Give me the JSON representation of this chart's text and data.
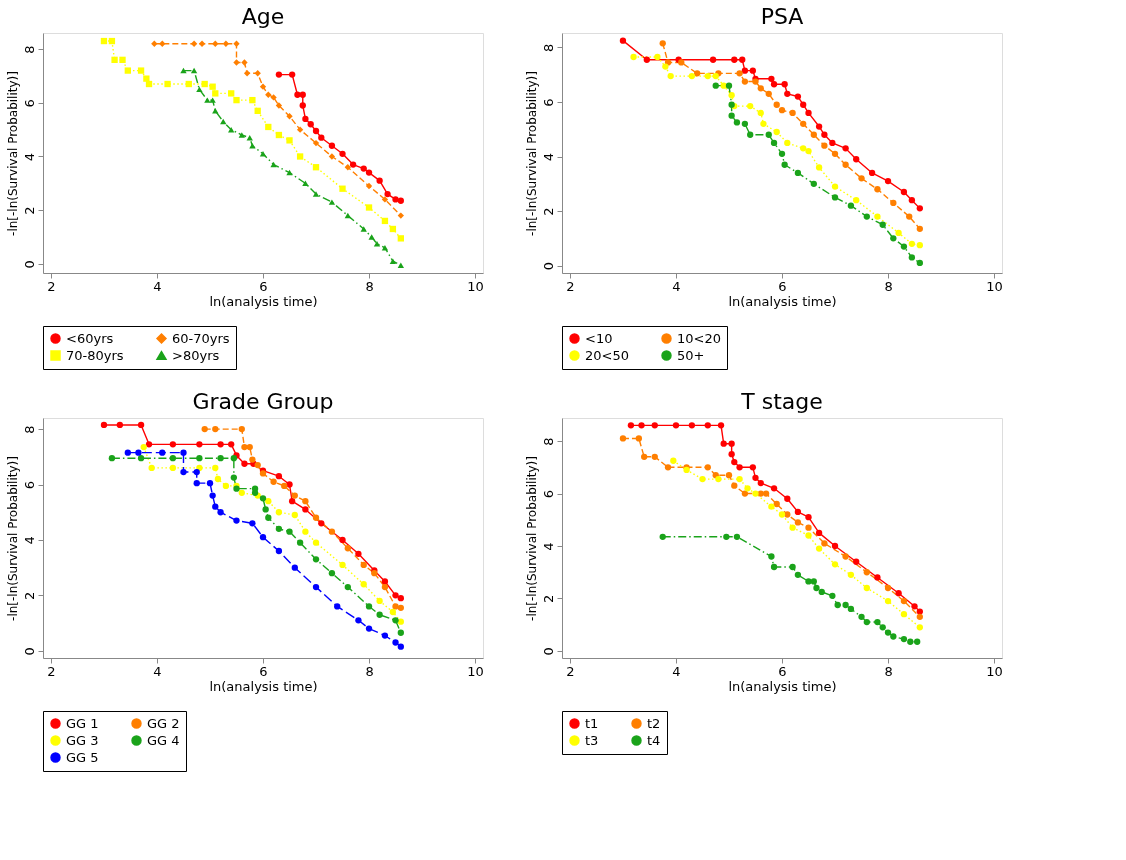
{
  "chart_data": [
    {
      "type": "line",
      "title": "Age",
      "xlabel": "ln(analysis time)",
      "ylabel": "-ln[-ln(Survival Probability)]",
      "xlim": [
        1.85,
        10.15
      ],
      "ylim": [
        -0.34,
        8.6
      ],
      "xticks": [
        2,
        4,
        6,
        8,
        10
      ],
      "yticks": [
        0,
        2,
        4,
        6,
        8
      ],
      "grid": false,
      "legend": "bottom",
      "series": [
        {
          "name": "<60yrs",
          "color": "#ff0000",
          "line_style": "solid",
          "marker": "circle",
          "x": [
            6.3,
            6.55,
            6.65,
            6.75,
            6.75,
            6.8,
            6.9,
            7.0,
            7.1,
            7.3,
            7.5,
            7.7,
            7.9,
            8.0,
            8.2,
            8.35,
            8.5,
            8.6
          ],
          "values": [
            7.05,
            7.05,
            6.3,
            6.3,
            5.9,
            5.4,
            5.2,
            4.95,
            4.7,
            4.4,
            4.1,
            3.7,
            3.55,
            3.4,
            3.1,
            2.6,
            2.4,
            2.35
          ]
        },
        {
          "name": "60-70yrs",
          "color": "#ff7f00",
          "line_style": "dashed",
          "marker": "diamond",
          "x": [
            3.95,
            4.1,
            4.7,
            4.85,
            5.1,
            5.3,
            5.5,
            5.5,
            5.65,
            5.7,
            5.9,
            6.0,
            6.1,
            6.2,
            6.3,
            6.5,
            6.7,
            7.0,
            7.3,
            7.6,
            8.0,
            8.3,
            8.6
          ],
          "values": [
            8.2,
            8.2,
            8.2,
            8.2,
            8.2,
            8.2,
            8.2,
            7.5,
            7.5,
            7.1,
            7.1,
            6.6,
            6.3,
            6.2,
            5.9,
            5.5,
            5.0,
            4.5,
            4.0,
            3.6,
            2.9,
            2.4,
            1.8
          ]
        },
        {
          "name": "70-80yrs",
          "color": "#ffff00",
          "line_style": "dotted",
          "marker": "square",
          "x": [
            3.0,
            3.15,
            3.2,
            3.35,
            3.45,
            3.7,
            3.8,
            3.85,
            4.2,
            4.6,
            4.9,
            5.05,
            5.1,
            5.4,
            5.5,
            5.8,
            5.9,
            6.1,
            6.3,
            6.5,
            6.7,
            7.0,
            7.5,
            8.0,
            8.3,
            8.45,
            8.6
          ],
          "values": [
            8.3,
            8.3,
            7.6,
            7.6,
            7.2,
            7.2,
            6.9,
            6.7,
            6.7,
            6.7,
            6.7,
            6.6,
            6.35,
            6.35,
            6.1,
            6.1,
            5.7,
            5.1,
            4.8,
            4.6,
            4.0,
            3.6,
            2.8,
            2.1,
            1.6,
            1.3,
            0.95
          ]
        },
        {
          "name": ">80yrs",
          "color": "#1aa31a",
          "line_style": "dashdot",
          "marker": "triangle",
          "x": [
            4.5,
            4.7,
            4.8,
            4.95,
            5.05,
            5.1,
            5.25,
            5.4,
            5.6,
            5.75,
            5.8,
            6.0,
            6.2,
            6.5,
            6.8,
            7.0,
            7.3,
            7.6,
            7.9,
            8.05,
            8.15,
            8.3,
            8.45,
            8.6
          ],
          "values": [
            7.2,
            7.2,
            6.5,
            6.1,
            6.1,
            5.7,
            5.3,
            5.0,
            4.8,
            4.7,
            4.4,
            4.1,
            3.7,
            3.4,
            3.0,
            2.6,
            2.3,
            1.8,
            1.3,
            1.0,
            0.75,
            0.6,
            0.1,
            -0.05
          ]
        }
      ]
    },
    {
      "type": "line",
      "title": "PSA",
      "xlabel": "ln(analysis time)",
      "ylabel": "-ln[-ln(Survival Probability)]",
      "xlim": [
        1.85,
        10.15
      ],
      "ylim": [
        -0.27,
        8.53
      ],
      "xticks": [
        2,
        4,
        6,
        8,
        10
      ],
      "yticks": [
        0,
        2,
        4,
        6,
        8
      ],
      "grid": false,
      "legend": "bottom",
      "series": [
        {
          "name": "<10",
          "color": "#ff0000",
          "line_style": "solid",
          "marker": "circle",
          "x": [
            3.0,
            3.45,
            4.05,
            4.7,
            5.1,
            5.25,
            5.3,
            5.45,
            5.5,
            5.8,
            5.85,
            6.05,
            6.1,
            6.3,
            6.4,
            6.5,
            6.7,
            6.8,
            6.95,
            7.2,
            7.4,
            7.7,
            8.0,
            8.3,
            8.45,
            8.6
          ],
          "values": [
            8.25,
            7.55,
            7.55,
            7.55,
            7.55,
            7.55,
            7.15,
            7.15,
            6.85,
            6.85,
            6.65,
            6.65,
            6.3,
            6.2,
            5.9,
            5.6,
            5.1,
            4.8,
            4.5,
            4.3,
            3.9,
            3.4,
            3.1,
            2.7,
            2.4,
            2.1
          ]
        },
        {
          "name": "10<20",
          "color": "#ff7f00",
          "line_style": "dashed",
          "marker": "circle",
          "x": [
            3.75,
            3.85,
            4.1,
            4.4,
            4.8,
            5.2,
            5.3,
            5.5,
            5.6,
            5.75,
            5.9,
            6.0,
            6.2,
            6.4,
            6.6,
            6.8,
            7.0,
            7.2,
            7.5,
            7.8,
            8.1,
            8.4,
            8.6
          ],
          "values": [
            8.15,
            7.45,
            7.45,
            7.05,
            7.05,
            7.05,
            6.75,
            6.75,
            6.5,
            6.3,
            5.9,
            5.7,
            5.6,
            5.2,
            4.8,
            4.4,
            4.1,
            3.7,
            3.2,
            2.8,
            2.3,
            1.8,
            1.35
          ]
        },
        {
          "name": "20<50",
          "color": "#ffff00",
          "line_style": "dotted",
          "marker": "circle",
          "x": [
            3.2,
            3.65,
            3.8,
            3.9,
            4.3,
            4.6,
            4.75,
            4.9,
            5.05,
            5.1,
            5.4,
            5.6,
            5.65,
            5.9,
            6.1,
            6.4,
            6.5,
            6.7,
            7.0,
            7.4,
            7.8,
            8.2,
            8.45,
            8.6
          ],
          "values": [
            7.65,
            7.65,
            7.3,
            6.95,
            6.95,
            6.95,
            6.95,
            6.6,
            6.25,
            5.85,
            5.85,
            5.6,
            5.2,
            4.9,
            4.5,
            4.3,
            4.2,
            3.6,
            2.9,
            2.4,
            1.8,
            1.2,
            0.8,
            0.75
          ]
        },
        {
          "name": "50+",
          "color": "#1aa31a",
          "line_style": "dashdot",
          "marker": "circle",
          "x": [
            4.75,
            5.0,
            5.05,
            5.05,
            5.15,
            5.3,
            5.4,
            5.75,
            5.85,
            6.0,
            6.05,
            6.3,
            6.6,
            7.0,
            7.3,
            7.6,
            7.9,
            8.1,
            8.3,
            8.45,
            8.6
          ],
          "values": [
            6.6,
            6.6,
            5.9,
            5.5,
            5.25,
            5.2,
            4.8,
            4.8,
            4.5,
            4.1,
            3.7,
            3.4,
            3.0,
            2.5,
            2.2,
            1.8,
            1.5,
            1.0,
            0.7,
            0.3,
            0.1
          ]
        }
      ]
    },
    {
      "type": "line",
      "title": "Grade Group",
      "xlabel": "ln(analysis time)",
      "ylabel": "-ln[-ln(Survival Probability)]",
      "xlim": [
        1.85,
        10.15
      ],
      "ylim": [
        -0.26,
        8.4
      ],
      "xticks": [
        2,
        4,
        6,
        8,
        10
      ],
      "yticks": [
        0,
        2,
        4,
        6,
        8
      ],
      "grid": false,
      "legend": "bottom",
      "series": [
        {
          "name": "GG 1",
          "color": "#ff0000",
          "line_style": "solid",
          "marker": "circle",
          "x": [
            3.0,
            3.3,
            3.7,
            3.85,
            4.3,
            4.8,
            5.2,
            5.4,
            5.5,
            5.65,
            5.82,
            6.0,
            6.3,
            6.5,
            6.55,
            6.8,
            7.1,
            7.5,
            7.8,
            8.1,
            8.3,
            8.5,
            8.6
          ],
          "values": [
            8.15,
            8.15,
            8.15,
            7.45,
            7.45,
            7.45,
            7.45,
            7.45,
            7.05,
            6.75,
            6.75,
            6.5,
            6.3,
            6.0,
            5.4,
            5.1,
            4.6,
            4.0,
            3.5,
            2.9,
            2.5,
            2.0,
            1.9
          ]
        },
        {
          "name": "GG 2",
          "color": "#ff7f00",
          "line_style": "dashed",
          "marker": "circle",
          "x": [
            4.9,
            5.1,
            5.6,
            5.65,
            5.75,
            5.8,
            5.9,
            6.0,
            6.2,
            6.4,
            6.6,
            6.8,
            7.0,
            7.3,
            7.6,
            7.9,
            8.1,
            8.3,
            8.5,
            8.6
          ],
          "values": [
            8.0,
            8.0,
            8.0,
            7.35,
            7.35,
            6.9,
            6.7,
            6.4,
            6.1,
            5.95,
            5.6,
            5.4,
            4.8,
            4.3,
            3.7,
            3.1,
            2.8,
            2.3,
            1.6,
            1.55
          ]
        },
        {
          "name": "GG 3",
          "color": "#ffff00",
          "line_style": "dotted",
          "marker": "circle",
          "x": [
            3.75,
            3.9,
            4.3,
            4.8,
            5.1,
            5.15,
            5.3,
            5.5,
            5.6,
            5.9,
            6.1,
            6.3,
            6.6,
            6.8,
            7.0,
            7.5,
            7.9,
            8.2,
            8.45,
            8.6
          ],
          "values": [
            7.35,
            6.6,
            6.6,
            6.6,
            6.6,
            6.2,
            5.95,
            5.95,
            5.7,
            5.6,
            5.4,
            5.0,
            4.9,
            4.3,
            3.9,
            3.1,
            2.4,
            1.8,
            1.4,
            1.05
          ]
        },
        {
          "name": "GG 4",
          "color": "#1aa31a",
          "line_style": "dashdot",
          "marker": "circle",
          "x": [
            3.15,
            3.7,
            4.3,
            4.8,
            5.2,
            5.45,
            5.45,
            5.5,
            5.85,
            5.85,
            6.0,
            6.05,
            6.1,
            6.3,
            6.5,
            6.7,
            7.0,
            7.3,
            7.6,
            8.0,
            8.2,
            8.5,
            8.6
          ],
          "values": [
            6.95,
            6.95,
            6.95,
            6.95,
            6.95,
            6.95,
            6.25,
            5.85,
            5.85,
            5.7,
            5.5,
            5.1,
            4.8,
            4.4,
            4.3,
            3.9,
            3.3,
            2.8,
            2.3,
            1.6,
            1.3,
            1.1,
            0.65
          ]
        },
        {
          "name": "GG 5",
          "color": "#0000ff",
          "line_style": "longdash",
          "marker": "circle",
          "x": [
            3.45,
            3.65,
            4.1,
            4.5,
            4.5,
            4.75,
            4.75,
            5.0,
            5.05,
            5.1,
            5.2,
            5.5,
            5.8,
            6.0,
            6.3,
            6.6,
            7.0,
            7.4,
            7.8,
            8.0,
            8.3,
            8.5,
            8.6
          ],
          "values": [
            7.15,
            7.15,
            7.15,
            7.15,
            6.45,
            6.45,
            6.05,
            6.05,
            5.6,
            5.2,
            5.0,
            4.7,
            4.6,
            4.1,
            3.6,
            3.0,
            2.3,
            1.6,
            1.1,
            0.8,
            0.55,
            0.3,
            0.15
          ]
        }
      ]
    },
    {
      "type": "line",
      "title": "T stage",
      "xlabel": "ln(analysis time)",
      "ylabel": "-ln[-ln(Survival Probability)]",
      "xlim": [
        1.85,
        10.15
      ],
      "ylim": [
        -0.27,
        8.88
      ],
      "xticks": [
        2,
        4,
        6,
        8,
        10
      ],
      "yticks": [
        0,
        2,
        4,
        6,
        8
      ],
      "grid": false,
      "legend": "bottom",
      "series": [
        {
          "name": "t1",
          "color": "#ff0000",
          "line_style": "solid",
          "marker": "circle",
          "x": [
            3.15,
            3.35,
            3.6,
            4.0,
            4.3,
            4.6,
            4.85,
            4.9,
            5.05,
            5.05,
            5.1,
            5.2,
            5.45,
            5.5,
            5.6,
            5.85,
            6.1,
            6.3,
            6.5,
            6.7,
            7.0,
            7.4,
            7.8,
            8.2,
            8.5,
            8.6
          ],
          "values": [
            8.6,
            8.6,
            8.6,
            8.6,
            8.6,
            8.6,
            8.6,
            7.9,
            7.9,
            7.5,
            7.2,
            7.0,
            7.0,
            6.6,
            6.4,
            6.2,
            5.8,
            5.3,
            5.1,
            4.5,
            4.0,
            3.4,
            2.8,
            2.2,
            1.7,
            1.5
          ]
        },
        {
          "name": "t2",
          "color": "#ff7f00",
          "line_style": "dashed",
          "marker": "circle",
          "x": [
            3.0,
            3.3,
            3.4,
            3.6,
            3.85,
            4.2,
            4.6,
            4.75,
            5.0,
            5.1,
            5.3,
            5.6,
            5.7,
            5.9,
            6.1,
            6.3,
            6.5,
            6.8,
            7.2,
            7.6,
            8.0,
            8.3,
            8.6
          ],
          "values": [
            8.1,
            8.1,
            7.4,
            7.4,
            7.0,
            7.0,
            7.0,
            6.7,
            6.7,
            6.3,
            6.0,
            6.0,
            6.0,
            5.6,
            5.2,
            4.9,
            4.7,
            4.1,
            3.6,
            3.0,
            2.4,
            1.9,
            1.3
          ]
        },
        {
          "name": "t3",
          "color": "#ffff00",
          "line_style": "dotted",
          "marker": "circle",
          "x": [
            3.95,
            4.2,
            4.5,
            4.8,
            5.2,
            5.35,
            5.5,
            5.8,
            6.0,
            6.2,
            6.5,
            6.7,
            7.0,
            7.3,
            7.6,
            8.0,
            8.3,
            8.6
          ],
          "values": [
            7.25,
            6.9,
            6.55,
            6.55,
            6.55,
            6.2,
            6.0,
            5.5,
            5.2,
            4.7,
            4.4,
            3.9,
            3.3,
            2.9,
            2.4,
            1.9,
            1.4,
            0.9
          ]
        },
        {
          "name": "t4",
          "color": "#1aa31a",
          "line_style": "dashdot",
          "marker": "circle",
          "x": [
            3.75,
            4.95,
            5.15,
            5.8,
            5.85,
            6.2,
            6.3,
            6.5,
            6.6,
            6.65,
            6.75,
            6.95,
            7.05,
            7.2,
            7.3,
            7.5,
            7.6,
            7.8,
            7.9,
            8.0,
            8.1,
            8.3,
            8.42,
            8.55
          ],
          "values": [
            4.35,
            4.35,
            4.35,
            3.6,
            3.2,
            3.2,
            2.9,
            2.65,
            2.65,
            2.4,
            2.25,
            2.1,
            1.75,
            1.75,
            1.6,
            1.3,
            1.1,
            1.1,
            0.9,
            0.7,
            0.55,
            0.45,
            0.35,
            0.35
          ]
        }
      ]
    }
  ]
}
